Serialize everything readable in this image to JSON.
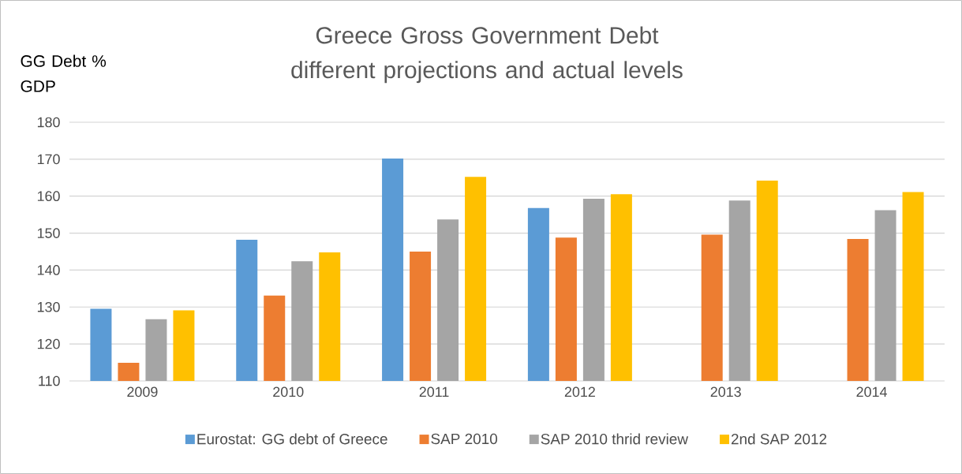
{
  "chart_data": {
    "type": "bar",
    "title": "Greece Gross Government Debt different projections and actual levels",
    "ylabel": "GG Debt % GDP",
    "categories": [
      "2009",
      "2010",
      "2011",
      "2012",
      "2013",
      "2014"
    ],
    "series": [
      {
        "name": "Eurostat: GG debt of Greece",
        "color": "#5b9bd5",
        "values": [
          129.5,
          148.2,
          170.2,
          156.8,
          null,
          null
        ]
      },
      {
        "name": "SAP 2010",
        "color": "#ed7d31",
        "values": [
          114.9,
          133.1,
          145.0,
          148.8,
          149.6,
          148.4
        ]
      },
      {
        "name": "SAP 2010 thrid review",
        "color": "#a5a5a5",
        "values": [
          126.7,
          142.4,
          153.7,
          159.3,
          158.8,
          156.2
        ]
      },
      {
        "name": "2nd SAP 2012",
        "color": "#ffc000",
        "values": [
          129.1,
          144.8,
          165.2,
          160.5,
          164.2,
          161.1
        ]
      }
    ],
    "ylim": [
      110,
      180
    ],
    "yticks": [
      110,
      120,
      130,
      140,
      150,
      160,
      170,
      180
    ],
    "grid": "y",
    "legend": "bottom"
  }
}
